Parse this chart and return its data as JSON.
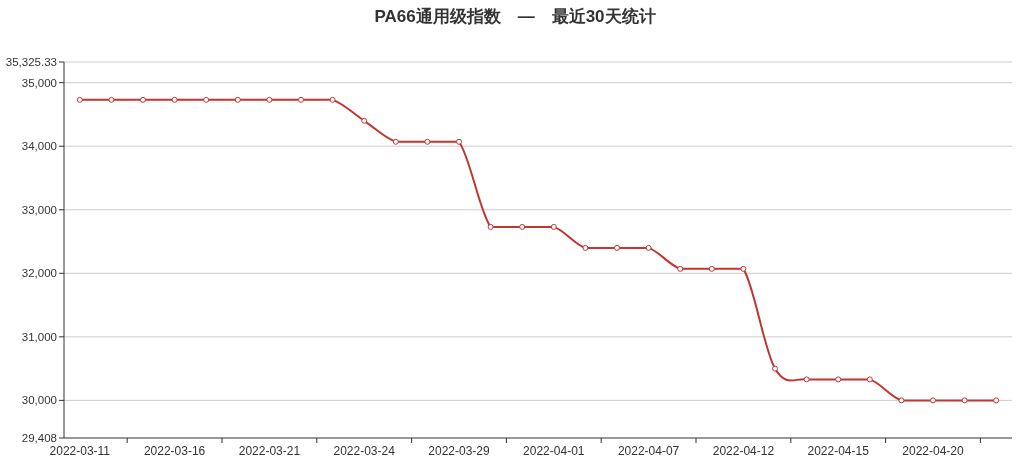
{
  "chart_data": {
    "type": "line",
    "title": "PA66通用级指数　—　最近30天统计",
    "categories": [
      "2022-03-11",
      null,
      null,
      "2022-03-16",
      null,
      null,
      "2022-03-21",
      null,
      null,
      "2022-03-24",
      null,
      null,
      "2022-03-29",
      null,
      null,
      "2022-04-01",
      null,
      null,
      "2022-04-07",
      null,
      null,
      "2022-04-12",
      null,
      null,
      "2022-04-15",
      null,
      null,
      "2022-04-20",
      null,
      null
    ],
    "series": [
      {
        "color": "#c23531",
        "values": [
          34730,
          34730,
          34730,
          34730,
          34730,
          34730,
          34730,
          34730,
          34730,
          34400,
          34070,
          34070,
          34070,
          32730,
          32730,
          32730,
          32400,
          32400,
          32400,
          32070,
          32070,
          32070,
          30500,
          30330,
          30330,
          30330,
          30000,
          30000,
          30000,
          30000
        ]
      }
    ],
    "ylim": [
      29408,
      35325.33
    ],
    "yticks": [
      {
        "value": 29408,
        "label": "29,408"
      },
      {
        "value": 30000,
        "label": "30,000"
      },
      {
        "value": 31000,
        "label": "31,000"
      },
      {
        "value": 32000,
        "label": "32,000"
      },
      {
        "value": 33000,
        "label": "33,000"
      },
      {
        "value": 34000,
        "label": "34,000"
      },
      {
        "value": 35000,
        "label": "35,000"
      },
      {
        "value": 35325.33,
        "label": "35,325.33"
      }
    ],
    "grid": "y",
    "marker": "circle"
  }
}
